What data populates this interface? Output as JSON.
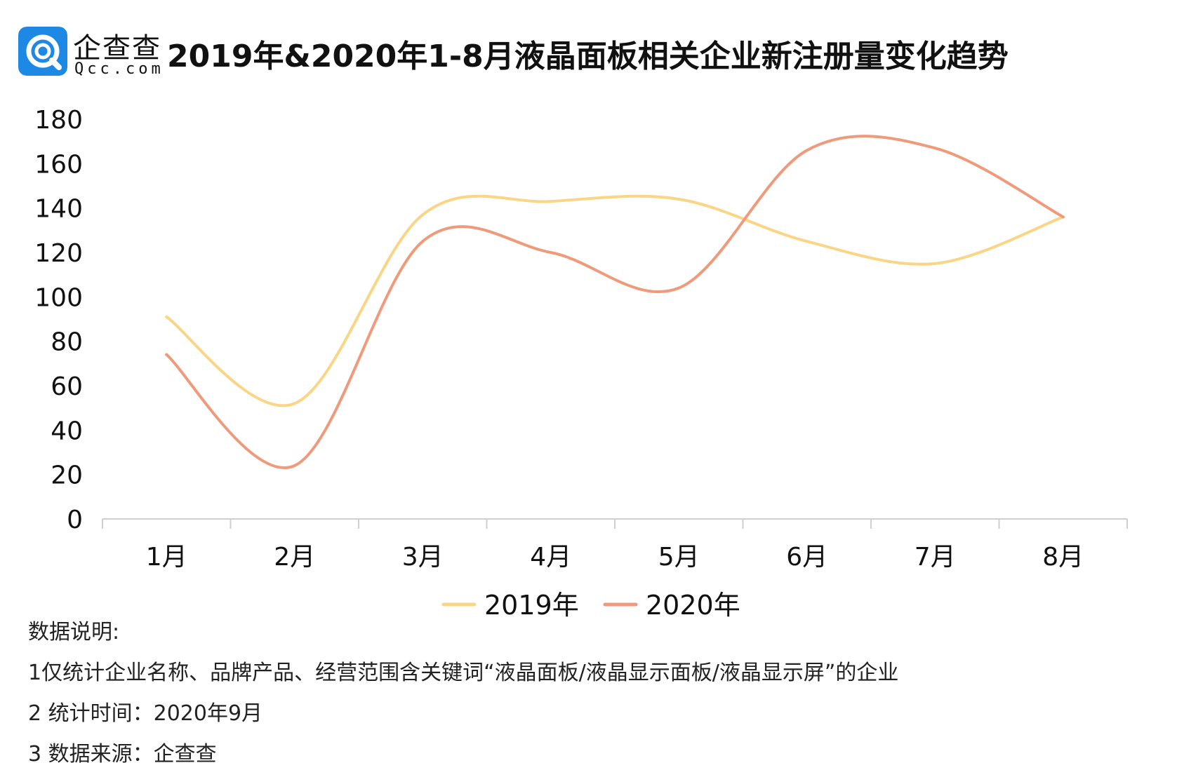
{
  "logo": {
    "cn": "企查查",
    "en": "Qcc.com",
    "brand_color": "#1E88E5"
  },
  "chart_data": {
    "type": "line",
    "title": "2019年&2020年1-8月液晶面板相关企业新注册量变化趋势",
    "categories": [
      "1月",
      "2月",
      "3月",
      "4月",
      "5月",
      "6月",
      "7月",
      "8月"
    ],
    "series": [
      {
        "name": "2019年",
        "color": "#F9D585",
        "values": [
          91,
          52,
          137,
          143,
          144,
          125,
          115,
          136
        ]
      },
      {
        "name": "2020年",
        "color": "#EF9A7A",
        "values": [
          74,
          24,
          125,
          120,
          104,
          166,
          167,
          136
        ]
      }
    ],
    "yticks": [
      "0",
      "20",
      "40",
      "60",
      "80",
      "100",
      "120",
      "140",
      "160",
      "180"
    ],
    "ylim": [
      0,
      180
    ],
    "grid": false,
    "legend_position": "bottom",
    "smooth": true
  },
  "notes": {
    "heading": "数据说明:",
    "line1": "1仅统计企业名称、品牌产品、经营范围含关键词“液晶面板/液晶显示面板/液晶显示屏”的企业",
    "line2": "2 统计时间：2020年9月",
    "line3": "3 数据来源：企查查"
  }
}
